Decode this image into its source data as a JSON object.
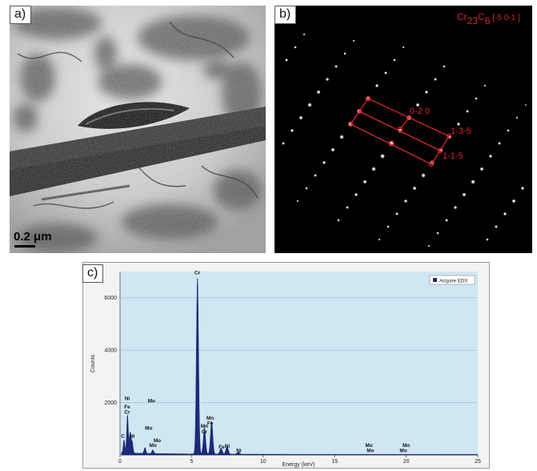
{
  "panels": {
    "a": {
      "label": "a)",
      "scale_bar": "0.2 μm"
    },
    "b": {
      "label": "b)",
      "phase": "Cr",
      "phase_sub1": "23",
      "phase_c": "C",
      "phase_sub2": "6",
      "zone_axis": "[-5 0-1 ]",
      "indices": [
        "0-2 0",
        "1-3-5",
        "1-1-5"
      ]
    },
    "c": {
      "label": "c)",
      "legend": "Acquire EDX",
      "colors": {
        "spectrum": "#1c2a78",
        "gridline": "#9cc7dc",
        "plot_bg": "#cfe7f2",
        "annotation": "#e02030"
      }
    }
  },
  "chart_data": {
    "type": "area",
    "title": "",
    "xlabel": "Energy (keV)",
    "ylabel": "Counts",
    "xlim": [
      0,
      25
    ],
    "ylim": [
      0,
      7000
    ],
    "xticks": [
      0,
      5,
      10,
      15,
      20,
      25
    ],
    "yticks": [
      2000,
      4000,
      6000
    ],
    "grid": true,
    "legend_position": "top-right",
    "series": [
      {
        "name": "Acquire EDX",
        "peaks": [
          {
            "x": 0.28,
            "y": 500
          },
          {
            "x": 0.52,
            "y": 1450
          },
          {
            "x": 0.71,
            "y": 780
          },
          {
            "x": 0.85,
            "y": 420
          },
          {
            "x": 1.74,
            "y": 220
          },
          {
            "x": 2.29,
            "y": 140
          },
          {
            "x": 5.41,
            "y": 6700
          },
          {
            "x": 5.9,
            "y": 1000
          },
          {
            "x": 6.4,
            "y": 1250
          },
          {
            "x": 7.06,
            "y": 230
          },
          {
            "x": 7.48,
            "y": 300
          },
          {
            "x": 8.26,
            "y": 80
          }
        ]
      }
    ],
    "annotations": [
      {
        "text": "Ni",
        "x": 0.5,
        "y": 2100
      },
      {
        "text": "Fe",
        "x": 0.5,
        "y": 1770
      },
      {
        "text": "Cr",
        "x": 0.5,
        "y": 1580
      },
      {
        "text": "C",
        "x": 0.2,
        "y": 660
      },
      {
        "text": "Ni",
        "x": 0.85,
        "y": 660
      },
      {
        "text": "Mo",
        "x": 2.2,
        "y": 2000
      },
      {
        "text": "Mo",
        "x": 2.0,
        "y": 970
      },
      {
        "text": "Mo",
        "x": 2.6,
        "y": 490
      },
      {
        "text": "Mo",
        "x": 2.3,
        "y": 300
      },
      {
        "text": "Cr",
        "x": 5.4,
        "y": 6900
      },
      {
        "text": "Mn",
        "x": 6.3,
        "y": 1350
      },
      {
        "text": "Fe",
        "x": 6.3,
        "y": 1140
      },
      {
        "text": "Mn",
        "x": 5.9,
        "y": 1040
      },
      {
        "text": "Cr",
        "x": 5.9,
        "y": 820
      },
      {
        "text": "Fe",
        "x": 7.1,
        "y": 240
      },
      {
        "text": "Ni",
        "x": 7.5,
        "y": 270
      },
      {
        "text": "Ni",
        "x": 8.3,
        "y": 110
      },
      {
        "text": "Mo",
        "x": 17.4,
        "y": 300
      },
      {
        "text": "Mo",
        "x": 17.5,
        "y": 100
      },
      {
        "text": "Mo",
        "x": 20.0,
        "y": 300
      },
      {
        "text": "Mo",
        "x": 19.8,
        "y": 100
      }
    ]
  }
}
